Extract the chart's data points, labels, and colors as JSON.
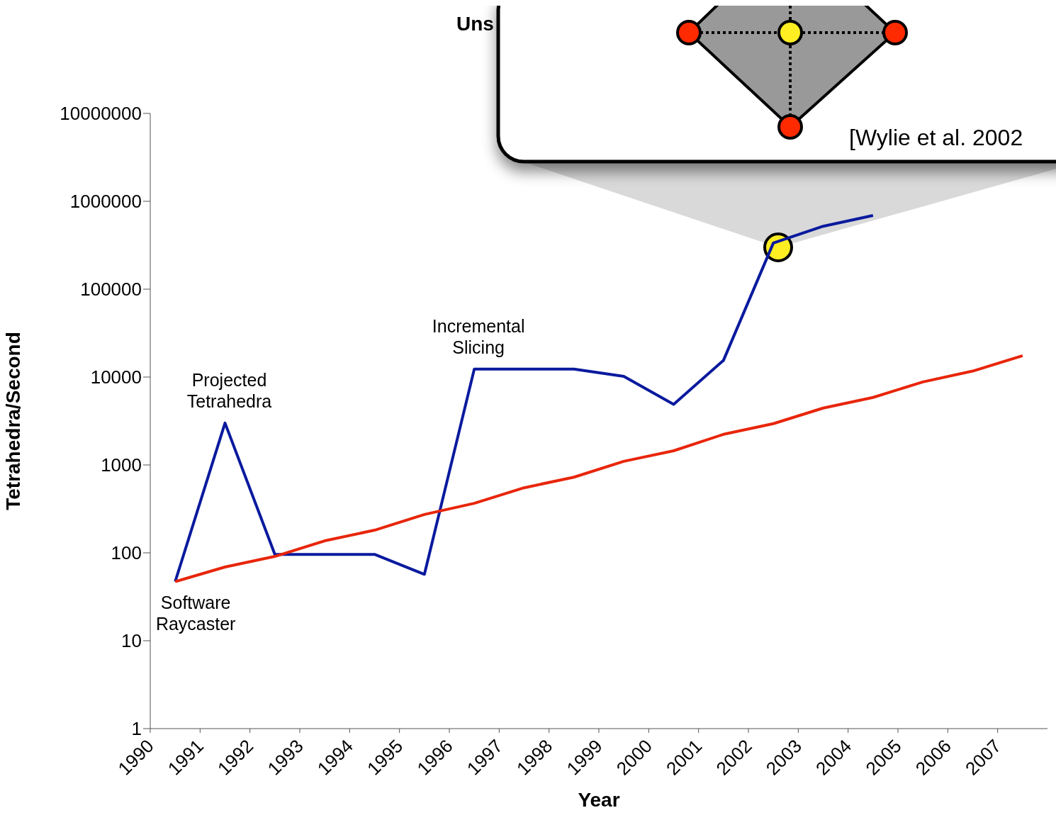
{
  "chart_data": {
    "type": "line",
    "xlabel": "Year",
    "ylabel": "Tetrahedra/Second",
    "x": [
      1990.5,
      1991.5,
      1992.5,
      1993.5,
      1994.5,
      1995.5,
      1996.5,
      1997.5,
      1998.5,
      1999.5,
      2000.5,
      2001.5,
      2002.5,
      2003.5,
      2004.5,
      2005.5,
      2006.5,
      2007.5
    ],
    "series": [
      {
        "color": "#0a1a9e",
        "values": [
          47,
          3000,
          96,
          96,
          96,
          57,
          12300,
          12300,
          12300,
          10200,
          4900,
          15500,
          335000,
          520000,
          690000,
          null,
          null,
          null
        ]
      },
      {
        "color": "#e8250a",
        "values": [
          47,
          69,
          91,
          137,
          181,
          273,
          366,
          550,
          726,
          1100,
          1450,
          2230,
          2950,
          4440,
          5860,
          8800,
          11700,
          17500
        ]
      }
    ],
    "log": "y",
    "xlim": [
      1990,
      2008
    ],
    "xticks": [
      1990,
      1991,
      1992,
      1993,
      1994,
      1995,
      1996,
      1997,
      1998,
      1999,
      2000,
      2001,
      2002,
      2003,
      2004,
      2005,
      2006,
      2007
    ],
    "ylim": [
      1,
      10000000
    ],
    "yticks": [
      1,
      10,
      100,
      1000,
      10000,
      100000,
      1000000,
      10000000
    ],
    "grid": false,
    "marker": "none",
    "line_style": "solid",
    "annotations": [
      {
        "text": "Projected Tetrahedra",
        "x": 1991.5,
        "y": 3000
      },
      {
        "text": "Incremental Slicing",
        "x": 1996.5,
        "y": 12300
      },
      {
        "text": "Software Raycaster",
        "x": 1990.5,
        "y": 47
      },
      "Uns",
      "[Wylie et al. 2002"
    ]
  }
}
